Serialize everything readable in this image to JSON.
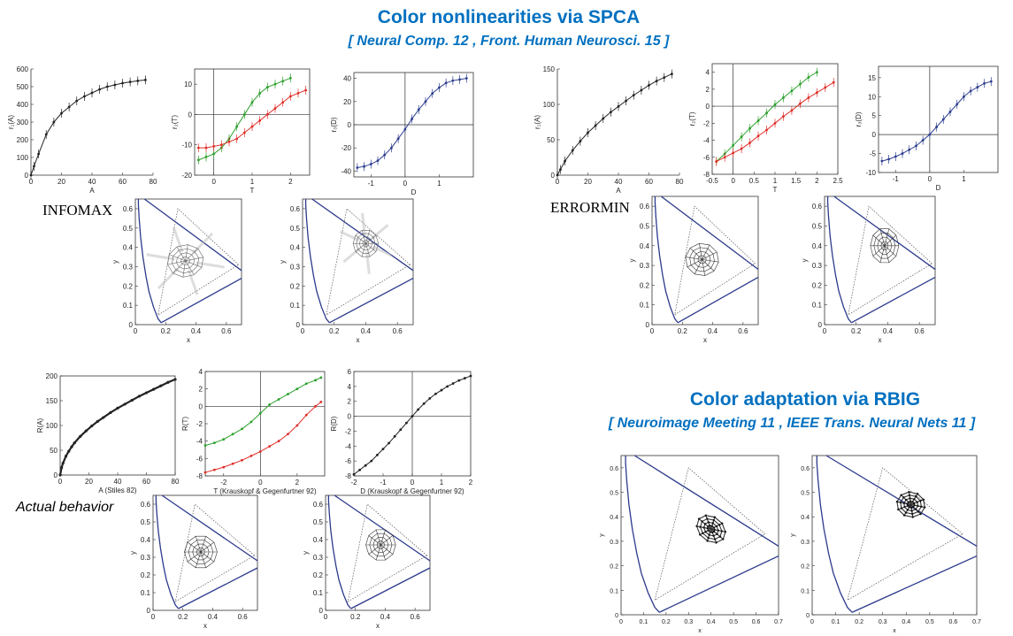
{
  "headers": {
    "spca_title": "Color nonlinearities via SPCA",
    "spca_refs": "[ Neural Comp. 12 ,  Front. Human Neurosci. 15 ]",
    "rbig_title": "Color adaptation via RBIG",
    "rbig_refs": "[ Neuroimage Meeting 11 ,  IEEE Trans. Neural Nets 11 ]"
  },
  "section_labels": {
    "infomax": "INFOMAX",
    "errormin": "ERRORMIN",
    "actual": "Actual behavior"
  },
  "colors": {
    "header_blue": "#0070c0",
    "series_green": "#2ca02c",
    "series_red": "#e0302a",
    "series_blue": "#2e3f8f",
    "locus": "#2b3a8c"
  },
  "chart_data": [
    {
      "id": "infomax-r1",
      "type": "line",
      "xlabel": "A",
      "ylabel": "r₁(A)",
      "xlim": [
        0,
        80
      ],
      "ylim": [
        0,
        600
      ],
      "xticks": [
        "0",
        "20",
        "40",
        "60",
        "80"
      ],
      "yticks": [
        "0",
        "100",
        "200",
        "300",
        "400",
        "500",
        "600"
      ],
      "series": [
        {
          "color": "#222222",
          "errorbars": true,
          "x": [
            0,
            2,
            5,
            10,
            15,
            20,
            25,
            30,
            35,
            40,
            45,
            50,
            55,
            60,
            65,
            70,
            75
          ],
          "y": [
            0,
            50,
            120,
            230,
            300,
            350,
            385,
            420,
            445,
            465,
            485,
            500,
            510,
            520,
            527,
            533,
            538
          ]
        }
      ]
    },
    {
      "id": "infomax-r2",
      "type": "line",
      "xlabel": "T",
      "ylabel": "r₂(T)",
      "xlim": [
        -0.5,
        2.5
      ],
      "ylim": [
        -20,
        15
      ],
      "xticks": [
        "0",
        "1",
        "2"
      ],
      "yticks": [
        "-20",
        "-10",
        "0",
        "10"
      ],
      "axes_cross": [
        0,
        0
      ],
      "series": [
        {
          "color": "#2ca02c",
          "errorbars": true,
          "x": [
            -0.4,
            -0.2,
            0,
            0.2,
            0.4,
            0.6,
            0.8,
            1.0,
            1.2,
            1.4,
            1.6,
            1.8,
            2.0
          ],
          "y": [
            -15,
            -14,
            -13,
            -11,
            -8,
            -4,
            0,
            4,
            7,
            9,
            10,
            11,
            12
          ]
        },
        {
          "color": "#e0302a",
          "errorbars": true,
          "x": [
            -0.4,
            -0.2,
            0,
            0.2,
            0.4,
            0.6,
            0.8,
            1.0,
            1.2,
            1.4,
            1.6,
            1.8,
            2.0,
            2.2,
            2.4
          ],
          "y": [
            -11,
            -11,
            -10.5,
            -10,
            -9,
            -8,
            -6,
            -4,
            -2,
            0,
            2,
            4,
            6,
            7,
            8
          ]
        }
      ]
    },
    {
      "id": "infomax-r3",
      "type": "line",
      "xlabel": "D",
      "ylabel": "r₃(D)",
      "xlim": [
        -1.5,
        2
      ],
      "ylim": [
        -45,
        45
      ],
      "xticks": [
        "-1",
        "0",
        "1"
      ],
      "yticks": [
        "-40",
        "-20",
        "0",
        "20",
        "40"
      ],
      "axes_cross": [
        0,
        0
      ],
      "series": [
        {
          "color": "#2e3f8f",
          "errorbars": true,
          "x": [
            -1.4,
            -1.2,
            -1.0,
            -0.8,
            -0.6,
            -0.4,
            -0.2,
            0,
            0.2,
            0.4,
            0.6,
            0.8,
            1.0,
            1.2,
            1.4,
            1.6,
            1.8
          ],
          "y": [
            -37,
            -36,
            -34,
            -31,
            -26,
            -20,
            -12,
            -4,
            5,
            13,
            20,
            27,
            32,
            36,
            38,
            39,
            40
          ]
        }
      ]
    },
    {
      "id": "errormin-r1",
      "type": "line",
      "xlabel": "A",
      "ylabel": "r₁(A)",
      "xlim": [
        0,
        80
      ],
      "ylim": [
        0,
        150
      ],
      "xticks": [
        "0",
        "20",
        "40",
        "60",
        "80"
      ],
      "yticks": [
        "0",
        "50",
        "100",
        "150"
      ],
      "series": [
        {
          "color": "#222222",
          "errorbars": true,
          "x": [
            0,
            2,
            5,
            10,
            15,
            20,
            25,
            30,
            35,
            40,
            45,
            50,
            55,
            60,
            65,
            70,
            75
          ],
          "y": [
            0,
            8,
            20,
            35,
            48,
            60,
            70,
            80,
            89,
            97,
            105,
            113,
            120,
            127,
            133,
            138,
            143
          ]
        }
      ]
    },
    {
      "id": "errormin-r2",
      "type": "line",
      "xlabel": "T",
      "ylabel": "r₂(T)",
      "xlim": [
        -0.5,
        2.5
      ],
      "ylim": [
        -8,
        5
      ],
      "xticks": [
        "-0.5",
        "0",
        "0.5",
        "1",
        "1.5",
        "2",
        "2.5"
      ],
      "yticks": [
        "-8",
        "-6",
        "-4",
        "-2",
        "0",
        "2",
        "4"
      ],
      "axes_cross": [
        0,
        0
      ],
      "series": [
        {
          "color": "#2ca02c",
          "errorbars": true,
          "x": [
            -0.4,
            -0.2,
            0,
            0.2,
            0.4,
            0.6,
            0.8,
            1.0,
            1.2,
            1.4,
            1.6,
            1.8,
            2.0
          ],
          "y": [
            -6.5,
            -5.6,
            -4.6,
            -3.6,
            -2.6,
            -1.7,
            -0.8,
            0.2,
            1,
            1.8,
            2.6,
            3.4,
            4
          ]
        },
        {
          "color": "#e0302a",
          "errorbars": true,
          "x": [
            -0.4,
            -0.2,
            0,
            0.2,
            0.4,
            0.6,
            0.8,
            1.0,
            1.2,
            1.4,
            1.6,
            1.8,
            2.0,
            2.2,
            2.4
          ],
          "y": [
            -6.5,
            -6,
            -5.5,
            -5,
            -4.3,
            -3.5,
            -2.8,
            -2,
            -1.2,
            -0.5,
            0.3,
            1,
            1.6,
            2.2,
            2.8
          ]
        }
      ]
    },
    {
      "id": "errormin-r3",
      "type": "line",
      "xlabel": "D",
      "ylabel": "r₃(D)",
      "xlim": [
        -1.5,
        2
      ],
      "ylim": [
        -10,
        18
      ],
      "xticks": [
        "-1",
        "0",
        "1"
      ],
      "yticks": [
        "-10",
        "-5",
        "0",
        "5",
        "10",
        "15"
      ],
      "axes_cross": [
        0,
        0
      ],
      "series": [
        {
          "color": "#2e3f8f",
          "errorbars": true,
          "x": [
            -1.4,
            -1.2,
            -1.0,
            -0.8,
            -0.6,
            -0.4,
            -0.2,
            0,
            0.2,
            0.4,
            0.6,
            0.8,
            1.0,
            1.2,
            1.4,
            1.6,
            1.8
          ],
          "y": [
            -7,
            -6.5,
            -5.8,
            -5,
            -4,
            -3,
            -1.5,
            0,
            2,
            4,
            6,
            8,
            10,
            11.5,
            12.5,
            13.5,
            14
          ]
        }
      ]
    },
    {
      "id": "actual-r1",
      "type": "line",
      "xlabel": "A (Stiles 82)",
      "ylabel": "R(A)",
      "xlim": [
        0,
        80
      ],
      "ylim": [
        0,
        200
      ],
      "xticks": [
        "0",
        "20",
        "40",
        "60",
        "80"
      ],
      "yticks": [
        "0",
        "50",
        "100",
        "150",
        "200"
      ],
      "series": [
        {
          "color": "#222222",
          "errorbars": false,
          "dense": true,
          "x": [
            0,
            1,
            2,
            4,
            6,
            8,
            10,
            14,
            18,
            22,
            26,
            30,
            35,
            40,
            45,
            50,
            55,
            60,
            65,
            70,
            75,
            80
          ],
          "y": [
            0,
            15,
            24,
            38,
            48,
            57,
            65,
            78,
            89,
            99,
            108,
            116,
            126,
            135,
            143,
            151,
            159,
            166,
            173,
            180,
            187,
            193
          ]
        }
      ]
    },
    {
      "id": "actual-r2",
      "type": "line",
      "xlabel": "T (Krauskopf & Gegenfurtner 92)",
      "ylabel": "R(T)",
      "xlim": [
        -3,
        3.5
      ],
      "ylim": [
        -8,
        4
      ],
      "xticks": [
        "-2",
        "0",
        "2"
      ],
      "yticks": [
        "-8",
        "-6",
        "-4",
        "-2",
        "0",
        "2",
        "4"
      ],
      "axes_cross": [
        0,
        0
      ],
      "series": [
        {
          "color": "#2ca02c",
          "errorbars": false,
          "x": [
            -3,
            -2.5,
            -2,
            -1.5,
            -1,
            -0.5,
            0,
            0.5,
            1,
            1.5,
            2,
            2.5,
            3,
            3.3
          ],
          "y": [
            -4.5,
            -4.2,
            -3.8,
            -3.2,
            -2.6,
            -1.8,
            -0.8,
            0.2,
            0.8,
            1.4,
            2,
            2.6,
            3,
            3.3
          ]
        },
        {
          "color": "#e0302a",
          "errorbars": false,
          "x": [
            -3,
            -2.5,
            -2,
            -1.5,
            -1,
            -0.5,
            0,
            0.5,
            1,
            1.5,
            2,
            2.5,
            3,
            3.3
          ],
          "y": [
            -7.6,
            -7.3,
            -7,
            -6.6,
            -6.2,
            -5.7,
            -5.2,
            -4.6,
            -4,
            -3.2,
            -2.2,
            -1,
            0,
            0.5
          ]
        }
      ]
    },
    {
      "id": "actual-r3",
      "type": "line",
      "xlabel": "D (Krauskopf & Gegenfurtner 92)",
      "ylabel": "R(D)",
      "xlim": [
        -2,
        2
      ],
      "ylim": [
        -8,
        6
      ],
      "xticks": [
        "-2",
        "-1",
        "0",
        "1",
        "2"
      ],
      "yticks": [
        "-8",
        "-6",
        "-4",
        "-2",
        "0",
        "2",
        "4",
        "6"
      ],
      "axes_cross": [
        0,
        0
      ],
      "series": [
        {
          "color": "#222222",
          "errorbars": false,
          "x": [
            -2,
            -1.8,
            -1.6,
            -1.4,
            -1.2,
            -1,
            -0.8,
            -0.6,
            -0.4,
            -0.2,
            0,
            0.2,
            0.4,
            0.6,
            0.8,
            1,
            1.2,
            1.4,
            1.6,
            1.8,
            2
          ],
          "y": [
            -7.8,
            -7.2,
            -6.6,
            -6,
            -5.2,
            -4.4,
            -3.6,
            -2.7,
            -1.8,
            -0.9,
            0,
            0.9,
            1.7,
            2.4,
            3,
            3.5,
            4,
            4.4,
            4.8,
            5.1,
            5.4
          ]
        }
      ]
    },
    {
      "id": "infomax-cd1",
      "type": "chromaticity",
      "xlabel": "x",
      "ylabel": "y",
      "xlim": [
        0,
        0.7
      ],
      "ylim": [
        0,
        0.65
      ],
      "xticks": [
        "0",
        "0.2",
        "0.4",
        "0.6"
      ],
      "yticks": [
        "0",
        "0.1",
        "0.2",
        "0.3",
        "0.4",
        "0.5",
        "0.6"
      ],
      "triangle": [
        [
          0.68,
          0.31
        ],
        [
          0.28,
          0.6
        ],
        [
          0.15,
          0.05
        ]
      ],
      "grid": {
        "center": [
          0.33,
          0.33
        ],
        "radius": 0.12,
        "squash": 0.7,
        "tilt": -0.2,
        "smear": true
      }
    },
    {
      "id": "infomax-cd2",
      "type": "chromaticity",
      "xlabel": "x",
      "ylabel": "y",
      "xlim": [
        0,
        0.7
      ],
      "ylim": [
        0,
        0.65
      ],
      "xticks": [
        "0",
        "0.2",
        "0.4",
        "0.6"
      ],
      "yticks": [
        "0",
        "0.1",
        "0.2",
        "0.3",
        "0.4",
        "0.5",
        "0.6"
      ],
      "triangle": [
        [
          0.68,
          0.31
        ],
        [
          0.28,
          0.6
        ],
        [
          0.15,
          0.05
        ]
      ],
      "grid": {
        "center": [
          0.4,
          0.42
        ],
        "radius": 0.08,
        "squash": 0.9,
        "tilt": 0,
        "smear": true
      }
    },
    {
      "id": "errormin-cd1",
      "type": "chromaticity",
      "xlabel": "x",
      "ylabel": "y",
      "xlim": [
        0,
        0.7
      ],
      "ylim": [
        0,
        0.65
      ],
      "xticks": [
        "0",
        "0.2",
        "0.4",
        "0.6"
      ],
      "yticks": [
        "0",
        "0.1",
        "0.2",
        "0.3",
        "0.4",
        "0.5",
        "0.6"
      ],
      "triangle": [
        [
          0.68,
          0.31
        ],
        [
          0.28,
          0.6
        ],
        [
          0.15,
          0.05
        ]
      ],
      "grid": {
        "center": [
          0.33,
          0.33
        ],
        "radius": 0.11,
        "squash": 0.75,
        "tilt": 0.15,
        "smear": false
      }
    },
    {
      "id": "errormin-cd2",
      "type": "chromaticity",
      "xlabel": "x",
      "ylabel": "y",
      "xlim": [
        0,
        0.7
      ],
      "ylim": [
        0,
        0.65
      ],
      "xticks": [
        "0",
        "0.2",
        "0.4",
        "0.6"
      ],
      "yticks": [
        "0",
        "0.1",
        "0.2",
        "0.3",
        "0.4",
        "0.5",
        "0.6"
      ],
      "triangle": [
        [
          0.68,
          0.31
        ],
        [
          0.28,
          0.6
        ],
        [
          0.15,
          0.05
        ]
      ],
      "grid": {
        "center": [
          0.38,
          0.4
        ],
        "radius": 0.09,
        "squash": 1.0,
        "tilt": 0,
        "smear": false
      }
    },
    {
      "id": "actual-cd1",
      "type": "chromaticity",
      "xlabel": "x",
      "ylabel": "y",
      "xlim": [
        0,
        0.7
      ],
      "ylim": [
        0,
        0.65
      ],
      "xticks": [
        "0",
        "0.2",
        "0.4",
        "0.6"
      ],
      "yticks": [
        "0",
        "0.1",
        "0.2",
        "0.3",
        "0.4",
        "0.5",
        "0.6"
      ],
      "triangle": [
        [
          0.68,
          0.31
        ],
        [
          0.28,
          0.6
        ],
        [
          0.15,
          0.05
        ]
      ],
      "grid": {
        "center": [
          0.32,
          0.33
        ],
        "radius": 0.11,
        "squash": 0.85,
        "tilt": 0,
        "smear": false
      }
    },
    {
      "id": "actual-cd2",
      "type": "chromaticity",
      "xlabel": "x",
      "ylabel": "y",
      "xlim": [
        0,
        0.7
      ],
      "ylim": [
        0,
        0.65
      ],
      "xticks": [
        "0",
        "0.2",
        "0.4",
        "0.6"
      ],
      "yticks": [
        "0",
        "0.1",
        "0.2",
        "0.3",
        "0.4",
        "0.5",
        "0.6"
      ],
      "triangle": [
        [
          0.68,
          0.31
        ],
        [
          0.28,
          0.6
        ],
        [
          0.15,
          0.05
        ]
      ],
      "grid": {
        "center": [
          0.37,
          0.37
        ],
        "radius": 0.1,
        "squash": 0.9,
        "tilt": 0,
        "smear": false
      }
    },
    {
      "id": "rbig-cd1",
      "type": "chromaticity",
      "xlabel": "x",
      "ylabel": "y",
      "xlim": [
        0,
        0.7
      ],
      "ylim": [
        0,
        0.65
      ],
      "xticks": [
        "0",
        "0.1",
        "0.2",
        "0.3",
        "0.4",
        "0.5",
        "0.6",
        "0.7"
      ],
      "yticks": [
        "0",
        "0.1",
        "0.2",
        "0.3",
        "0.4",
        "0.5",
        "0.6"
      ],
      "triangle": [
        [
          0.64,
          0.33
        ],
        [
          0.3,
          0.6
        ],
        [
          0.15,
          0.06
        ]
      ],
      "grid": {
        "center": [
          0.4,
          0.35
        ],
        "radius": 0.07,
        "squash": 0.7,
        "tilt": 0.7,
        "smear": false,
        "bold": true
      }
    },
    {
      "id": "rbig-cd2",
      "type": "chromaticity",
      "xlabel": "x",
      "ylabel": "y",
      "xlim": [
        0,
        0.7
      ],
      "ylim": [
        0,
        0.65
      ],
      "xticks": [
        "0",
        "0.1",
        "0.2",
        "0.3",
        "0.4",
        "0.5",
        "0.6",
        "0.7"
      ],
      "yticks": [
        "0",
        "0.1",
        "0.2",
        "0.3",
        "0.4",
        "0.5",
        "0.6"
      ],
      "triangle": [
        [
          0.64,
          0.33
        ],
        [
          0.3,
          0.6
        ],
        [
          0.15,
          0.06
        ]
      ],
      "grid": {
        "center": [
          0.42,
          0.45
        ],
        "radius": 0.06,
        "squash": 0.85,
        "tilt": 0.2,
        "smear": false,
        "bold": true
      }
    }
  ]
}
